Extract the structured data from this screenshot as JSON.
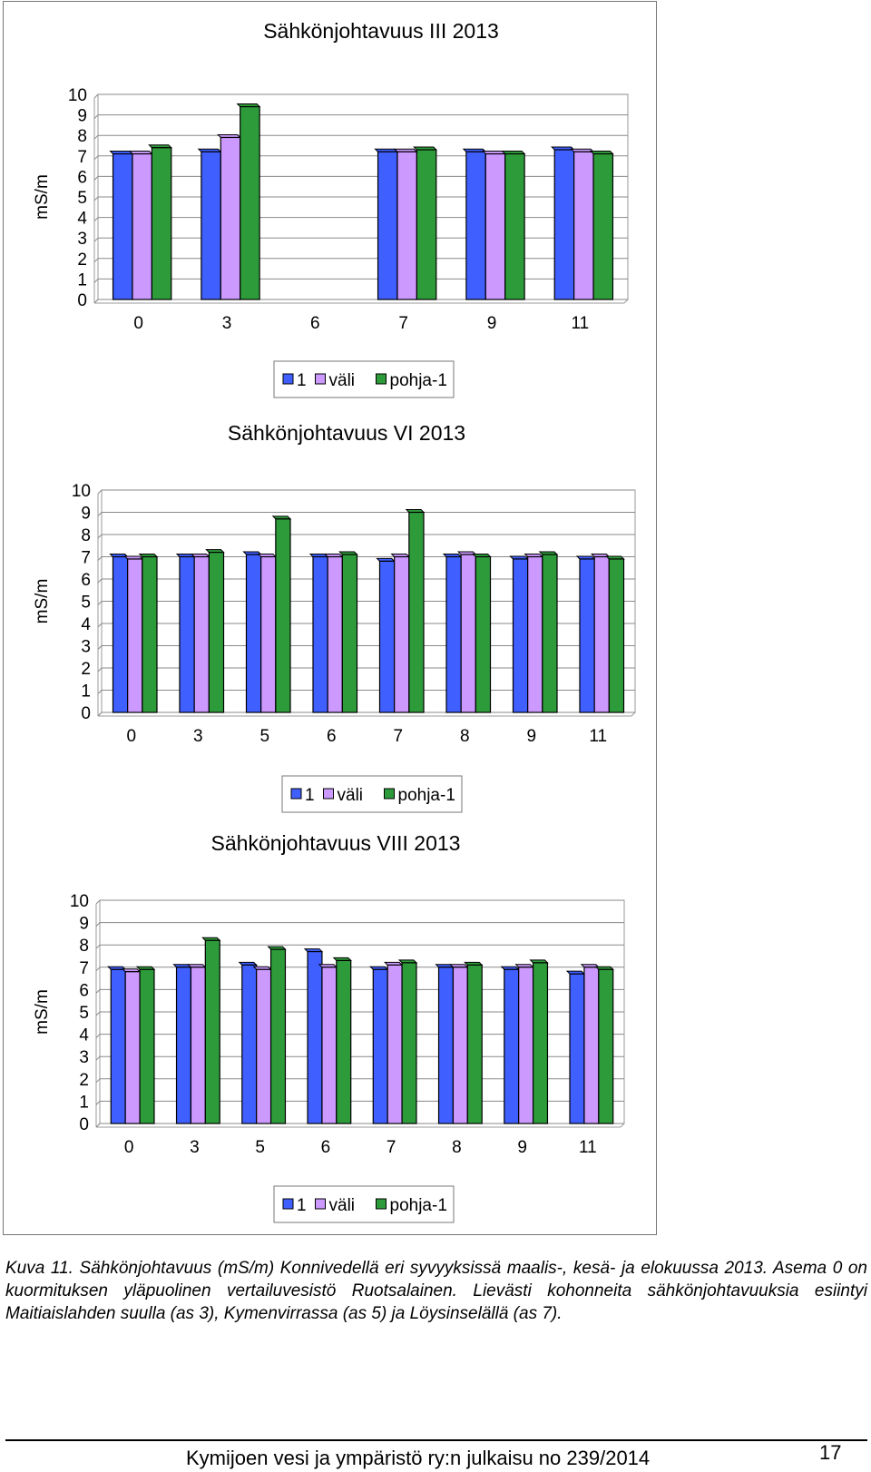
{
  "chart_data": [
    {
      "type": "bar",
      "title": "Sähkönjohtavuus  III 2013",
      "ylabel": "mS/m",
      "ylim": [
        0,
        10
      ],
      "yticks": [
        "0",
        "1",
        "2",
        "3",
        "4",
        "5",
        "6",
        "7",
        "8",
        "9",
        "10"
      ],
      "categories": [
        "0",
        "3",
        "6",
        "7",
        "9",
        "11"
      ],
      "grid": true,
      "legend": "bottom",
      "series": [
        {
          "name": "1",
          "color": "#3f5fff",
          "values": [
            7.1,
            7.2,
            null,
            7.2,
            7.2,
            7.3
          ]
        },
        {
          "name": "väli",
          "color": "#cc99ff",
          "values": [
            7.1,
            7.9,
            null,
            7.2,
            7.1,
            7.2
          ]
        },
        {
          "name": "pohja-1",
          "color": "#2e9b3a",
          "values": [
            7.4,
            9.4,
            null,
            7.3,
            7.1,
            7.1
          ]
        }
      ]
    },
    {
      "type": "bar",
      "title": "Sähkönjohtavuus  VI 2013",
      "ylabel": "mS/m",
      "ylim": [
        0,
        10
      ],
      "yticks": [
        "0",
        "1",
        "2",
        "3",
        "4",
        "5",
        "6",
        "7",
        "8",
        "9",
        "10"
      ],
      "categories": [
        "0",
        "3",
        "5",
        "6",
        "7",
        "8",
        "9",
        "11"
      ],
      "grid": true,
      "legend": "bottom",
      "series": [
        {
          "name": "1",
          "color": "#3f5fff",
          "values": [
            7.0,
            7.0,
            7.1,
            7.0,
            6.8,
            7.0,
            6.9,
            6.9
          ]
        },
        {
          "name": "väli",
          "color": "#cc99ff",
          "values": [
            6.9,
            7.0,
            7.0,
            7.0,
            7.0,
            7.1,
            7.0,
            7.0
          ]
        },
        {
          "name": "pohja-1",
          "color": "#2e9b3a",
          "values": [
            7.0,
            7.2,
            8.7,
            7.1,
            9.0,
            7.0,
            7.1,
            6.9
          ]
        }
      ]
    },
    {
      "type": "bar",
      "title": "Sähkönjohtavuus  VIII 2013",
      "ylabel": "mS/m",
      "ylim": [
        0,
        10
      ],
      "yticks": [
        "0",
        "1",
        "2",
        "3",
        "4",
        "5",
        "6",
        "7",
        "8",
        "9",
        "10"
      ],
      "categories": [
        "0",
        "3",
        "5",
        "6",
        "7",
        "8",
        "9",
        "11"
      ],
      "grid": true,
      "legend": "bottom",
      "series": [
        {
          "name": "1",
          "color": "#3f5fff",
          "values": [
            6.9,
            7.0,
            7.1,
            7.7,
            6.9,
            7.0,
            6.9,
            6.7
          ]
        },
        {
          "name": "väli",
          "color": "#cc99ff",
          "values": [
            6.8,
            7.0,
            6.9,
            7.0,
            7.1,
            7.0,
            7.0,
            7.0
          ]
        },
        {
          "name": "pohja-1",
          "color": "#2e9b3a",
          "values": [
            6.9,
            8.2,
            7.8,
            7.3,
            7.2,
            7.1,
            7.2,
            6.9
          ]
        }
      ]
    }
  ],
  "caption": "Kuva 11. Sähkönjohtavuus (mS/m) Konnivedellä eri syvyyksissä maalis-, kesä- ja elokuussa 2013. Asema 0 on kuormituksen yläpuolinen vertailuvesistö Ruotsalainen. Lievästi kohonneita sähkönjohtavuuksia esiintyi Maitiaislahden suulla (as 3), Kymenvirrassa (as 5) ja Löysinselällä (as 7).",
  "footer": {
    "publication": "Kymijoen vesi ja ympäristö ry:n julkaisu no 239/2014",
    "page_number": "17"
  }
}
